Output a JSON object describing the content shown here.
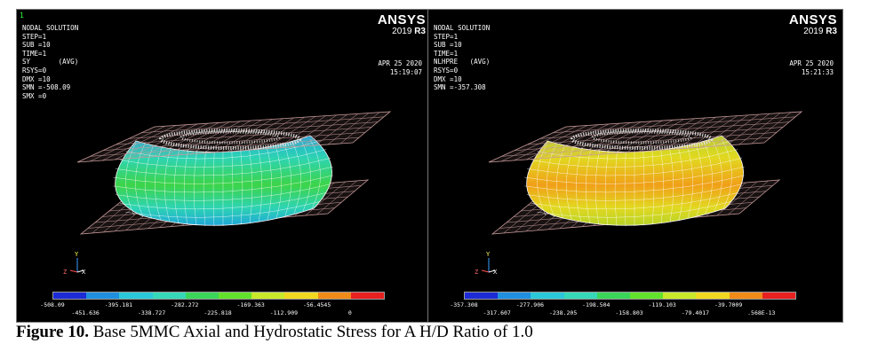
{
  "left_panel": {
    "window_number": "1",
    "info_lines": [
      "NODAL SOLUTION",
      "",
      "STEP=1",
      "SUB =10",
      "TIME=1",
      "SY       (AVG)",
      "RSYS=0",
      "DMX =10",
      "SMN =-508.09",
      "SMX =0"
    ],
    "brand": "ANSYS",
    "version": "2019",
    "release": "R3",
    "date": "APR 25 2020",
    "time": "15:19:07",
    "legend_colors": [
      "#1c2bd6",
      "#1f8fe0",
      "#2ac8d8",
      "#35d8b8",
      "#3ad65a",
      "#62e22a",
      "#c8e82a",
      "#f0d820",
      "#f08a18",
      "#e82020"
    ],
    "legend_top_labels": [
      "-508.09",
      "-395.181",
      "-282.272",
      "-169.363",
      "-56.4545"
    ],
    "legend_bottom_labels": [
      "-451.636",
      "-338.727",
      "-225.818",
      "-112.909",
      "0"
    ],
    "body_colors": {
      "main": "#2ed4b2",
      "band": "#3cd448",
      "edge": "#1fa8d8"
    },
    "triad": {
      "y": "Y",
      "x": "X",
      "z": "Z"
    }
  },
  "right_panel": {
    "info_lines": [
      "NODAL SOLUTION",
      "",
      "STEP=1",
      "SUB =10",
      "TIME=1",
      "NLHPRE   (AVG)",
      "RSYS=0",
      "DMX =10",
      "SMN =-357.308"
    ],
    "brand": "ANSYS",
    "version": "2019",
    "release": "R3",
    "date": "APR 25 2020",
    "time": "15:21:33",
    "legend_colors": [
      "#1c2bd6",
      "#1f8fe0",
      "#2ac8d8",
      "#35d8b8",
      "#3ad65a",
      "#62e22a",
      "#c8e82a",
      "#f0d820",
      "#f08a18",
      "#e82020"
    ],
    "legend_top_labels": [
      "-357.308",
      "-277.906",
      "-198.504",
      "-119.103",
      "-39.7009"
    ],
    "legend_bottom_labels": [
      "-317.607",
      "-238.205",
      "-158.803",
      "-79.4017",
      ".568E-13"
    ],
    "body_colors": {
      "main": "#e2d820",
      "band": "#f0a018",
      "edge": "#b8d428"
    },
    "triad": {
      "y": "Y",
      "x": "X",
      "z": "Z"
    }
  },
  "caption": {
    "label": "Figure 10.",
    "text": " Base 5MMC Axial and Hydrostatic Stress for A H/D Ratio of 1.0"
  },
  "colors": {
    "plate_mesh": "#c89a9a",
    "top_face_dots": "#e8e8e8"
  }
}
